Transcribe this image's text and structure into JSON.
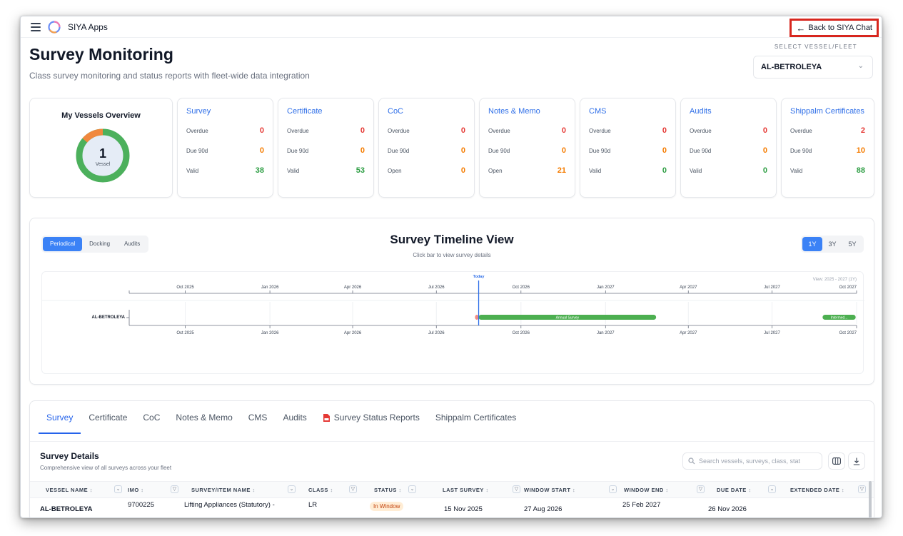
{
  "app": {
    "title": "SIYA Apps",
    "back_label": "Back to SIYA Chat"
  },
  "header": {
    "title": "Survey Monitoring",
    "subtitle": "Class survey monitoring and status reports with fleet-wide data integration",
    "select_label": "SELECT VESSEL/FLEET",
    "selected_vessel": "AL-BETROLEYA"
  },
  "overview": {
    "title": "My Vessels Overview",
    "count": "1",
    "unit": "Vessel",
    "colors": {
      "ok": "#4cb05c",
      "warn": "#f0883e"
    }
  },
  "cards": [
    {
      "title": "Survey",
      "rows": [
        {
          "label": "Overdue",
          "value": "0",
          "color": "#e53935"
        },
        {
          "label": "Due 90d",
          "value": "0",
          "color": "#f57c00"
        },
        {
          "label": "Valid",
          "value": "38",
          "color": "#2e9e44"
        }
      ]
    },
    {
      "title": "Certificate",
      "rows": [
        {
          "label": "Overdue",
          "value": "0",
          "color": "#e53935"
        },
        {
          "label": "Due 90d",
          "value": "0",
          "color": "#f57c00"
        },
        {
          "label": "Valid",
          "value": "53",
          "color": "#2e9e44"
        }
      ]
    },
    {
      "title": "CoC",
      "rows": [
        {
          "label": "Overdue",
          "value": "0",
          "color": "#e53935"
        },
        {
          "label": "Due 90d",
          "value": "0",
          "color": "#f57c00"
        },
        {
          "label": "Open",
          "value": "0",
          "color": "#f57c00"
        }
      ]
    },
    {
      "title": "Notes & Memo",
      "rows": [
        {
          "label": "Overdue",
          "value": "0",
          "color": "#e53935"
        },
        {
          "label": "Due 90d",
          "value": "0",
          "color": "#f57c00"
        },
        {
          "label": "Open",
          "value": "21",
          "color": "#f57c00"
        }
      ]
    },
    {
      "title": "CMS",
      "rows": [
        {
          "label": "Overdue",
          "value": "0",
          "color": "#e53935"
        },
        {
          "label": "Due 90d",
          "value": "0",
          "color": "#f57c00"
        },
        {
          "label": "Valid",
          "value": "0",
          "color": "#2e9e44"
        }
      ]
    },
    {
      "title": "Audits",
      "rows": [
        {
          "label": "Overdue",
          "value": "0",
          "color": "#e53935"
        },
        {
          "label": "Due 90d",
          "value": "0",
          "color": "#f57c00"
        },
        {
          "label": "Valid",
          "value": "0",
          "color": "#2e9e44"
        }
      ]
    },
    {
      "title": "Shippalm Certificates",
      "rows": [
        {
          "label": "Overdue",
          "value": "2",
          "color": "#e53935"
        },
        {
          "label": "Due 90d",
          "value": "10",
          "color": "#f57c00"
        },
        {
          "label": "Valid",
          "value": "88",
          "color": "#2e9e44"
        }
      ]
    }
  ],
  "timeline": {
    "title": "Survey Timeline View",
    "subtitle": "Click bar to view survey details",
    "modes": [
      "Periodical",
      "Docking",
      "Audits"
    ],
    "active_mode": "Periodical",
    "ranges": [
      "1Y",
      "3Y",
      "5Y"
    ],
    "active_range": "1Y",
    "view_label": "View: 2025 - 2027 (1Y)",
    "today_label": "Today",
    "today_date": "2026-08-16",
    "axis_start": "2025-08-01",
    "axis_end": "2027-10-01",
    "ticks": [
      {
        "label": "Oct 2025",
        "date": "2025-10-01"
      },
      {
        "label": "Jan 2026",
        "date": "2026-01-01"
      },
      {
        "label": "Apr 2026",
        "date": "2026-04-01"
      },
      {
        "label": "Jul 2026",
        "date": "2026-07-01"
      },
      {
        "label": "Oct 2026",
        "date": "2026-10-01"
      },
      {
        "label": "Jan 2027",
        "date": "2027-01-01"
      },
      {
        "label": "Apr 2027",
        "date": "2027-04-01"
      },
      {
        "label": "Jul 2027",
        "date": "2027-07-01"
      },
      {
        "label": "Oct 2027",
        "date": "2027-10-01"
      }
    ],
    "vessel": "AL-BETROLEYA",
    "bars": [
      {
        "label": "",
        "start": "2026-08-12",
        "end": "2026-08-16",
        "color": "#f28b82"
      },
      {
        "label": "Annual Survey",
        "start": "2026-08-16",
        "end": "2027-02-25",
        "color": "#4caf50"
      },
      {
        "label": "Intermed...",
        "start": "2027-08-25",
        "end": "2027-09-30",
        "color": "#4caf50"
      }
    ]
  },
  "tabs": [
    "Survey",
    "Certificate",
    "CoC",
    "Notes & Memo",
    "CMS",
    "Audits",
    "Survey Status Reports",
    "Shippalm Certificates"
  ],
  "active_tab": "Survey",
  "details": {
    "title": "Survey Details",
    "subtitle": "Comprehensive view of all surveys across your fleet",
    "search_placeholder": "Search vessels, surveys, class, stat",
    "columns": [
      "VESSEL NAME",
      "IMO",
      "SURVEY/ITEM NAME",
      "CLASS",
      "STATUS",
      "LAST SURVEY",
      "WINDOW START",
      "WINDOW END",
      "DUE DATE",
      "EXTENDED DATE"
    ],
    "rows": [
      {
        "vessel": "AL-BETROLEYA",
        "imo": "9700225",
        "survey": "Lifting Appliances (Statutory) -",
        "class": "LR",
        "status": "In Window",
        "last_survey": "15 Nov 2025",
        "window_start": "27 Aug 2026",
        "window_end": "25 Feb 2027",
        "due_date": "26 Nov 2026",
        "extended_date": ""
      }
    ]
  }
}
